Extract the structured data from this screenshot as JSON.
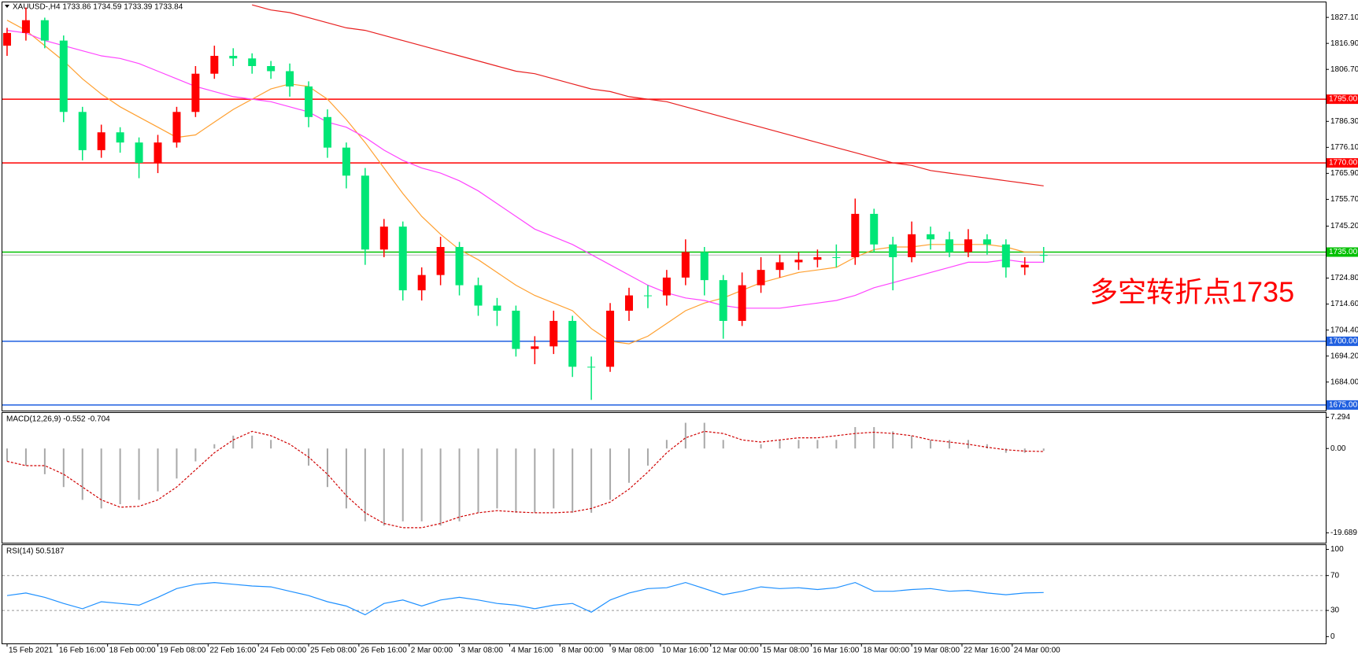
{
  "chart_data": [
    {
      "type": "candlestick",
      "title": "XAUUSD-,H4  1733.86 1734.59 1733.39 1733.84",
      "x": [
        0,
        3,
        6,
        9,
        12,
        15,
        18,
        21,
        24,
        27,
        30,
        33,
        36,
        39,
        42,
        45,
        48,
        51,
        54,
        57,
        60,
        63,
        66,
        69,
        72,
        75,
        78,
        81,
        84,
        87,
        90,
        93,
        96,
        99,
        102,
        105,
        108,
        111,
        114,
        117,
        120,
        123,
        126,
        129,
        132,
        135,
        138,
        141,
        144,
        147,
        150,
        153,
        156,
        159,
        162,
        165
      ],
      "open": [
        1816,
        1821,
        1826,
        1818,
        1790,
        1775,
        1782,
        1778,
        1770,
        1778,
        1790,
        1805,
        1812,
        1811,
        1808,
        1806,
        1800,
        1788,
        1776,
        1765,
        1736,
        1745,
        1720,
        1726,
        1737,
        1722,
        1714,
        1712,
        1697,
        1698,
        1708,
        1690,
        1690,
        1712,
        1718,
        1718,
        1725,
        1735,
        1724,
        1708,
        1722,
        1728,
        1731,
        1732,
        1733,
        1733,
        1750,
        1738,
        1733,
        1742,
        1740,
        1735,
        1740,
        1738,
        1729,
        1733.86
      ],
      "high": [
        1823,
        1831,
        1827,
        1820,
        1792,
        1785,
        1784,
        1780,
        1781,
        1792,
        1808,
        1816,
        1815,
        1813,
        1810,
        1809,
        1802,
        1791,
        1778,
        1768,
        1748,
        1747,
        1729,
        1741,
        1739,
        1725,
        1717,
        1714,
        1702,
        1712,
        1710,
        1694,
        1715,
        1721,
        1722,
        1728,
        1740,
        1737,
        1726,
        1727,
        1733,
        1734,
        1735,
        1736,
        1738,
        1756,
        1752,
        1741,
        1747,
        1745,
        1743,
        1744,
        1742,
        1740,
        1733,
        1737
      ],
      "low": [
        1812,
        1818,
        1815,
        1786,
        1771,
        1772,
        1774,
        1764,
        1766,
        1776,
        1788,
        1803,
        1808,
        1805,
        1803,
        1796,
        1784,
        1772,
        1760,
        1730,
        1733,
        1716,
        1716,
        1722,
        1718,
        1710,
        1706,
        1694,
        1691,
        1695,
        1686,
        1677,
        1688,
        1708,
        1713,
        1714,
        1722,
        1718,
        1701,
        1706,
        1719,
        1725,
        1728,
        1729,
        1729,
        1730,
        1735,
        1720,
        1731,
        1736,
        1733,
        1733,
        1734,
        1725,
        1726,
        1731
      ],
      "close": [
        1821,
        1826,
        1818,
        1790,
        1775,
        1782,
        1778,
        1770,
        1778,
        1790,
        1805,
        1812,
        1811,
        1808,
        1806,
        1800,
        1788,
        1776,
        1765,
        1736,
        1745,
        1720,
        1726,
        1737,
        1722,
        1714,
        1712,
        1697,
        1698,
        1708,
        1690,
        1690,
        1712,
        1718,
        1718,
        1725,
        1735,
        1724,
        1708,
        1722,
        1728,
        1731,
        1732,
        1733,
        1733,
        1750,
        1738,
        1733,
        1742,
        1740,
        1735,
        1740,
        1738,
        1729,
        1730,
        1733.84
      ],
      "up_color": "#ff0000",
      "down_color": "#00e676",
      "lines": [
        {
          "color": "#ffa030",
          "values": [
            1826,
            1822,
            1816,
            1810,
            1803,
            1797,
            1792,
            1788,
            1784,
            1780,
            1781,
            1786,
            1791,
            1795,
            1799,
            1801,
            1800,
            1795,
            1787,
            1778,
            1768,
            1758,
            1749,
            1742,
            1736,
            1732,
            1727,
            1722,
            1718,
            1715,
            1712,
            1705,
            1700,
            1699,
            1702,
            1707,
            1712,
            1715,
            1717,
            1720,
            1723,
            1725,
            1727,
            1728,
            1729,
            1733,
            1736,
            1737,
            1737,
            1738,
            1738,
            1738,
            1738,
            1737,
            1735,
            1735
          ]
        },
        {
          "color": "#ff44ff",
          "values": [
            1822,
            1821,
            1818,
            1816,
            1814,
            1812,
            1811,
            1809,
            1806,
            1803,
            1800,
            1798,
            1796,
            1795,
            1794,
            1792,
            1790,
            1786,
            1784,
            1780,
            1775,
            1771,
            1768,
            1766,
            1763,
            1759,
            1754,
            1749,
            1744,
            1741,
            1738,
            1734,
            1730,
            1726,
            1722,
            1719,
            1717,
            1716,
            1714,
            1713,
            1713,
            1713,
            1714,
            1715,
            1716,
            1718,
            1721,
            1723,
            1725,
            1727,
            1729,
            1731,
            1731,
            1732,
            1731,
            1731
          ]
        },
        {
          "color": "#e82020",
          "values": [
            null,
            null,
            null,
            null,
            null,
            null,
            null,
            null,
            null,
            null,
            null,
            null,
            null,
            1832,
            1830,
            1829,
            1827,
            1825,
            1823,
            1822,
            1820,
            1818,
            1816,
            1814,
            1812,
            1810,
            1808,
            1806,
            1805,
            1803,
            1801,
            1799,
            1798,
            1796,
            1795,
            1794,
            1792,
            1790,
            1788,
            1786,
            1784,
            1782,
            1780,
            1778,
            1776,
            1774,
            1772,
            1770,
            1769,
            1767,
            1766,
            1765,
            1764,
            1763,
            1762,
            1761
          ]
        }
      ],
      "levels": [
        {
          "value": 1795,
          "label": "1795.00",
          "color": "#ff0000"
        },
        {
          "value": 1770,
          "label": "1770.00",
          "color": "#ff0000"
        },
        {
          "value": 1735,
          "label": "1735.00",
          "color": "#00c000"
        },
        {
          "value": 1700,
          "label": "1700.00",
          "color": "#1f5fe0"
        },
        {
          "value": 1675,
          "label": "1675.00",
          "color": "#1f5fe0"
        }
      ],
      "annotation": {
        "text": "多空转折点1735",
        "color": "#ff0000"
      },
      "xlim": [
        -0.75,
        209.9
      ],
      "xticks": [
        {
          "value": 0,
          "label": "15 Feb 2021"
        },
        {
          "value": 8,
          "label": "16 Feb 16:00"
        },
        {
          "value": 16,
          "label": "18 Feb 00:00"
        },
        {
          "value": 24,
          "label": "19 Feb 08:00"
        },
        {
          "value": 32,
          "label": "22 Feb 16:00"
        },
        {
          "value": 40,
          "label": "24 Feb 00:00"
        },
        {
          "value": 48,
          "label": "25 Feb 08:00"
        },
        {
          "value": 56,
          "label": "26 Feb 16:00"
        },
        {
          "value": 64,
          "label": "2 Mar 00:00"
        },
        {
          "value": 72,
          "label": "3 Mar 08:00"
        },
        {
          "value": 80,
          "label": "4 Mar 16:00"
        },
        {
          "value": 88,
          "label": "8 Mar 00:00"
        },
        {
          "value": 96,
          "label": "9 Mar 08:00"
        },
        {
          "value": 104,
          "label": "10 Mar 16:00"
        },
        {
          "value": 112,
          "label": "12 Mar 00:00"
        },
        {
          "value": 120,
          "label": "15 Mar 08:00"
        },
        {
          "value": 128,
          "label": "16 Mar 16:00"
        },
        {
          "value": 136,
          "label": "18 Mar 00:00"
        },
        {
          "value": 144,
          "label": "19 Mar 08:00"
        },
        {
          "value": 152,
          "label": "22 Mar 16:00"
        },
        {
          "value": 160,
          "label": "24 Mar 00:00"
        }
      ],
      "ylim": [
        1672.8,
        1833
      ],
      "yticks": [
        {
          "value": 1827.1,
          "label": "1827.10"
        },
        {
          "value": 1816.9,
          "label": "1816.90"
        },
        {
          "value": 1806.7,
          "label": "1806.70"
        },
        {
          "value": 1786.3,
          "label": "1786.30"
        },
        {
          "value": 1776.1,
          "label": "1776.10"
        },
        {
          "value": 1765.9,
          "label": "1765.90"
        },
        {
          "value": 1755.7,
          "label": "1755.70"
        },
        {
          "value": 1745.2,
          "label": "1745.20"
        },
        {
          "value": 1724.8,
          "label": "1724.80"
        },
        {
          "value": 1714.6,
          "label": "1714.60"
        },
        {
          "value": 1704.4,
          "label": "1704.40"
        },
        {
          "value": 1694.2,
          "label": "1694.20"
        },
        {
          "value": 1684,
          "label": "1684.00"
        }
      ]
    },
    {
      "type": "macd",
      "title": "MACD(12,26,9) -0.552 -0.704",
      "series": [
        {
          "color": "#a8a8a8",
          "values": [
            -3,
            -4,
            -6,
            -9,
            -12,
            -14,
            -13,
            -12,
            -10,
            -7,
            -3,
            1,
            3,
            3,
            2,
            0,
            -4,
            -9,
            -14,
            -17,
            -18,
            -17,
            -17,
            -18,
            -17,
            -15,
            -14,
            -15,
            -15,
            -14,
            -15,
            -15,
            -12,
            -8,
            -4,
            2,
            6,
            6,
            2,
            0,
            1,
            2,
            2,
            2,
            2,
            5,
            5,
            4,
            3,
            2,
            2,
            2,
            1,
            -1,
            -1,
            -0.552
          ]
        },
        {
          "color": "#d00000",
          "values": [
            -3,
            -4,
            -4,
            -6,
            -9,
            -12,
            -13.7,
            -13.5,
            -12,
            -9,
            -5,
            -1,
            2,
            4,
            3,
            1,
            -2,
            -6,
            -11,
            -15,
            -17.5,
            -18.5,
            -18.5,
            -17.5,
            -16,
            -15,
            -14.5,
            -14.8,
            -15,
            -15,
            -14.8,
            -14,
            -12.5,
            -9.5,
            -5.5,
            -1,
            2.5,
            4,
            3.5,
            2,
            1.5,
            2,
            2.5,
            2.5,
            3,
            3.5,
            3.8,
            3.5,
            3,
            2,
            1.5,
            1,
            0.3,
            -0.3,
            -0.6,
            -0.704
          ]
        }
      ],
      "ylim": [
        -22,
        8.3
      ],
      "yticks": [
        7.294,
        {
          "value": 0,
          "label": "0.00"
        },
        -19.689
      ]
    },
    {
      "type": "rsi",
      "title": "RSI(14) 50.5187",
      "series": [
        {
          "color": "#1e90ff",
          "values": [
            47,
            50,
            45,
            38,
            32,
            40,
            38,
            36,
            45,
            55,
            60,
            62,
            60,
            58,
            57,
            52,
            47,
            40,
            35,
            25,
            38,
            42,
            35,
            42,
            45,
            42,
            38,
            36,
            32,
            36,
            38,
            28,
            42,
            50,
            55,
            56,
            62,
            55,
            48,
            52,
            57,
            55,
            56,
            54,
            56,
            62,
            52,
            52,
            54,
            55,
            52,
            53,
            50,
            48,
            50,
            50.5187
          ]
        }
      ],
      "levels": [
        70,
        30
      ],
      "ylim": [
        -7.8,
        104.9
      ],
      "yticks": [
        100,
        70,
        30,
        0
      ]
    }
  ]
}
